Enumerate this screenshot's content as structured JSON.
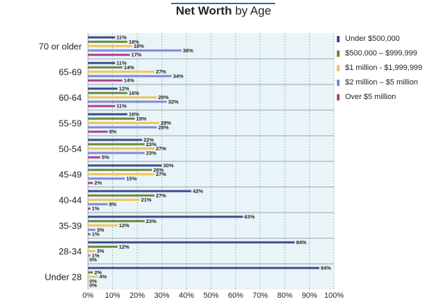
{
  "title": {
    "bold": "Net Worth",
    "rest": " by Age"
  },
  "colors": {
    "plot_bg": "#e8f4f8",
    "series": [
      "#3b4a8c",
      "#6b8a3a",
      "#f2c45c",
      "#8088d8",
      "#b0408f"
    ]
  },
  "chart_data": {
    "type": "bar",
    "orientation": "horizontal",
    "title": "Net Worth by Age",
    "categories": [
      "70 or older",
      "65-69",
      "60-64",
      "55-59",
      "50-54",
      "45-49",
      "40-44",
      "35-39",
      "28-34",
      "Under 28"
    ],
    "series": [
      {
        "name": "Under $500,000",
        "values": [
          11,
          11,
          12,
          16,
          22,
          30,
          42,
          63,
          84,
          94
        ]
      },
      {
        "name": "$500,000 – $999,999",
        "values": [
          16,
          14,
          16,
          19,
          23,
          26,
          27,
          23,
          12,
          2
        ]
      },
      {
        "name": "$1 million - $1,999,999",
        "values": [
          18,
          27,
          28,
          29,
          27,
          27,
          21,
          12,
          3,
          4
        ]
      },
      {
        "name": "$2 million – $5 million",
        "values": [
          38,
          34,
          32,
          28,
          23,
          15,
          8,
          3,
          1,
          0
        ]
      },
      {
        "name": "Over $5 million",
        "values": [
          17,
          14,
          11,
          8,
          5,
          2,
          1,
          1,
          0,
          0
        ]
      }
    ],
    "xlim": [
      0,
      100
    ],
    "xticks": [
      "0%",
      "10%",
      "20%",
      "30%",
      "40%",
      "50%",
      "60%",
      "70%",
      "80%",
      "90%",
      "100%"
    ],
    "value_suffix": "%",
    "grid": "vertical dotted",
    "legend_position": "right"
  }
}
